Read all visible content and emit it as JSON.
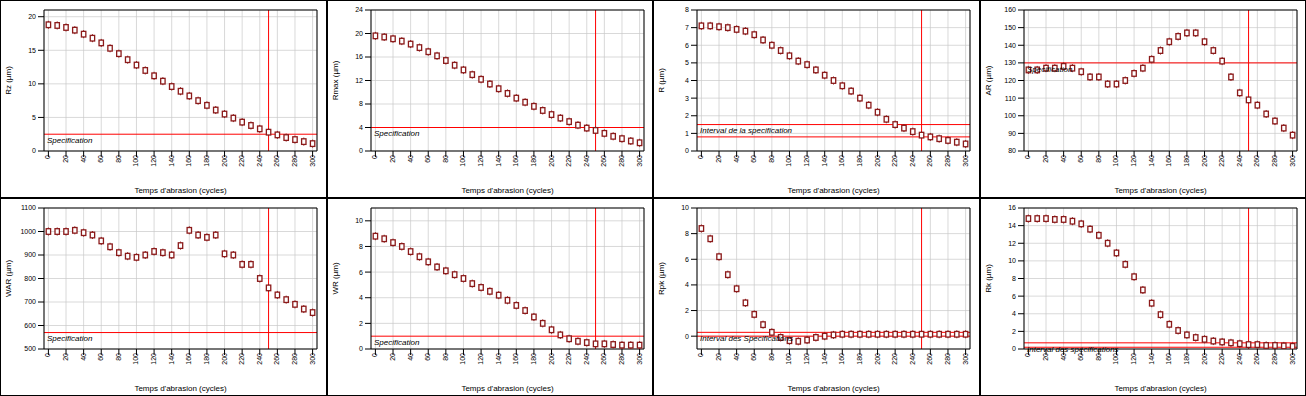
{
  "chart_data": [
    {
      "type": "scatter",
      "marker": "box",
      "color": "#8b1a1a",
      "grid": true,
      "ylabel": "Rz (µm)",
      "xlabel": "Temps d'abrasion (cycles)",
      "annotation": "Specification",
      "x": [
        0,
        10,
        20,
        30,
        40,
        50,
        60,
        70,
        80,
        90,
        100,
        110,
        120,
        130,
        140,
        150,
        160,
        170,
        180,
        190,
        200,
        210,
        220,
        230,
        240,
        250,
        260,
        270,
        280,
        290,
        300
      ],
      "values": [
        18.8,
        18.7,
        18.4,
        18.0,
        17.4,
        16.8,
        16.1,
        15.3,
        14.5,
        13.6,
        12.8,
        12.0,
        11.2,
        10.4,
        9.6,
        8.9,
        8.2,
        7.5,
        6.8,
        6.1,
        5.5,
        4.9,
        4.3,
        3.8,
        3.3,
        2.8,
        2.4,
        2.0,
        1.7,
        1.4,
        1.1
      ],
      "xlim": [
        -5,
        305
      ],
      "xticks": [
        0,
        20,
        40,
        60,
        80,
        100,
        120,
        140,
        160,
        180,
        200,
        220,
        240,
        260,
        280,
        300
      ],
      "ylim": [
        0,
        21
      ],
      "yticks": [
        0,
        5,
        10,
        15,
        20
      ],
      "hlines": [
        2.5
      ],
      "vline": 250
    },
    {
      "type": "scatter",
      "marker": "box",
      "color": "#8b1a1a",
      "grid": true,
      "ylabel": "Rmax (µm)",
      "xlabel": "Temps d'abrasion (cycles)",
      "annotation": "Specification",
      "x": [
        0,
        10,
        20,
        30,
        40,
        50,
        60,
        70,
        80,
        90,
        100,
        110,
        120,
        130,
        140,
        150,
        160,
        170,
        180,
        190,
        200,
        210,
        220,
        230,
        240,
        250,
        260,
        270,
        280,
        290,
        300
      ],
      "values": [
        19.6,
        19.4,
        19.1,
        18.7,
        18.2,
        17.6,
        16.9,
        16.2,
        15.4,
        14.6,
        13.8,
        13.0,
        12.2,
        11.4,
        10.6,
        9.8,
        9.0,
        8.3,
        7.6,
        6.9,
        6.2,
        5.6,
        5.0,
        4.4,
        3.9,
        3.5,
        3.0,
        2.5,
        2.1,
        1.7,
        1.4
      ],
      "xlim": [
        -5,
        305
      ],
      "xticks": [
        0,
        20,
        40,
        60,
        80,
        100,
        120,
        140,
        160,
        180,
        200,
        220,
        240,
        260,
        280,
        300
      ],
      "ylim": [
        0,
        24
      ],
      "yticks": [
        0,
        4,
        8,
        12,
        16,
        20,
        24
      ],
      "hlines": [
        4
      ],
      "vline": 250
    },
    {
      "type": "scatter",
      "marker": "box",
      "color": "#8b1a1a",
      "grid": true,
      "ylabel": "R (µm)",
      "xlabel": "Temps d'abrasion (cycles)",
      "annotation": "Interval de la specification",
      "x": [
        0,
        10,
        20,
        30,
        40,
        50,
        60,
        70,
        80,
        90,
        100,
        110,
        120,
        130,
        140,
        150,
        160,
        170,
        180,
        190,
        200,
        210,
        220,
        230,
        240,
        250,
        260,
        270,
        280,
        290,
        300
      ],
      "values": [
        7.1,
        7.1,
        7.05,
        7.0,
        6.9,
        6.8,
        6.6,
        6.3,
        6.0,
        5.7,
        5.4,
        5.1,
        4.9,
        4.6,
        4.3,
        4.0,
        3.7,
        3.4,
        3.0,
        2.6,
        2.2,
        1.8,
        1.5,
        1.3,
        1.1,
        0.9,
        0.8,
        0.7,
        0.6,
        0.5,
        0.4
      ],
      "xlim": [
        -5,
        305
      ],
      "xticks": [
        0,
        20,
        40,
        60,
        80,
        100,
        120,
        140,
        160,
        180,
        200,
        220,
        240,
        260,
        280,
        300
      ],
      "ylim": [
        0,
        8
      ],
      "yticks": [
        0,
        1,
        2,
        3,
        4,
        5,
        6,
        7,
        8
      ],
      "hlines": [
        0.8,
        1.5
      ],
      "vline": 250
    },
    {
      "type": "scatter",
      "marker": "box",
      "color": "#8b1a1a",
      "grid": true,
      "ylabel": "AR (µm)",
      "xlabel": "Temps d'abrasion (cycles)",
      "annotation": "Specification",
      "x": [
        0,
        10,
        20,
        30,
        40,
        50,
        60,
        70,
        80,
        90,
        100,
        110,
        120,
        130,
        140,
        150,
        160,
        170,
        180,
        190,
        200,
        210,
        220,
        230,
        240,
        250,
        260,
        270,
        280,
        290,
        300
      ],
      "values": [
        126,
        126,
        127,
        127,
        128,
        127,
        125,
        122,
        122,
        118,
        118,
        120,
        124,
        127,
        132,
        137,
        142,
        145,
        147,
        147,
        142,
        137,
        131,
        122,
        113,
        109,
        106,
        101,
        97,
        93,
        89
      ],
      "xlim": [
        -5,
        305
      ],
      "xticks": [
        0,
        20,
        40,
        60,
        80,
        100,
        120,
        140,
        160,
        180,
        200,
        220,
        240,
        260,
        280,
        300
      ],
      "ylim": [
        80,
        160
      ],
      "yticks": [
        80,
        90,
        100,
        110,
        120,
        130,
        140,
        150,
        160
      ],
      "hlines": [
        130
      ],
      "vline": 250
    },
    {
      "type": "scatter",
      "marker": "box",
      "color": "#8b1a1a",
      "grid": true,
      "ylabel": "WAR (µm)",
      "xlabel": "Temps d'abrasion (cycles)",
      "annotation": "Specification",
      "x": [
        0,
        10,
        20,
        30,
        40,
        50,
        60,
        70,
        80,
        90,
        100,
        110,
        120,
        130,
        140,
        150,
        160,
        170,
        180,
        190,
        200,
        210,
        220,
        230,
        240,
        250,
        260,
        270,
        280,
        290,
        300
      ],
      "values": [
        1000,
        1000,
        1000,
        1005,
        995,
        985,
        960,
        935,
        910,
        895,
        890,
        900,
        915,
        910,
        900,
        940,
        1005,
        985,
        975,
        985,
        905,
        900,
        860,
        860,
        800,
        760,
        730,
        710,
        690,
        670,
        655
      ],
      "xlim": [
        -5,
        305
      ],
      "xticks": [
        0,
        20,
        40,
        60,
        80,
        100,
        120,
        140,
        160,
        180,
        200,
        220,
        240,
        260,
        280,
        300
      ],
      "ylim": [
        500,
        1100
      ],
      "yticks": [
        500,
        600,
        700,
        800,
        900,
        1000,
        1100
      ],
      "hlines": [
        570
      ],
      "vline": 250
    },
    {
      "type": "scatter",
      "marker": "box",
      "color": "#8b1a1a",
      "grid": true,
      "ylabel": "WR (µm)",
      "xlabel": "Temps d'abrasion (cycles)",
      "annotation": "Specification",
      "x": [
        0,
        10,
        20,
        30,
        40,
        50,
        60,
        70,
        80,
        90,
        100,
        110,
        120,
        130,
        140,
        150,
        160,
        170,
        180,
        190,
        200,
        210,
        220,
        230,
        240,
        250,
        260,
        270,
        280,
        290,
        300
      ],
      "values": [
        8.8,
        8.6,
        8.3,
        8.0,
        7.6,
        7.2,
        6.8,
        6.4,
        6.1,
        5.8,
        5.5,
        5.1,
        4.8,
        4.5,
        4.2,
        3.8,
        3.4,
        3.0,
        2.5,
        2.0,
        1.5,
        1.1,
        0.8,
        0.6,
        0.5,
        0.4,
        0.4,
        0.35,
        0.3,
        0.3,
        0.3
      ],
      "xlim": [
        -5,
        305
      ],
      "xticks": [
        0,
        20,
        40,
        60,
        80,
        100,
        120,
        140,
        160,
        180,
        200,
        220,
        240,
        260,
        280,
        300
      ],
      "ylim": [
        0,
        11
      ],
      "yticks": [
        0,
        2,
        4,
        6,
        8,
        10
      ],
      "hlines": [
        1
      ],
      "vline": 250
    },
    {
      "type": "scatter",
      "marker": "box",
      "color": "#8b1a1a",
      "grid": true,
      "ylabel": "Rpk (µm)",
      "xlabel": "Temps d'abrasion (cycles)",
      "annotation": "Interval des Specifications",
      "x": [
        0,
        10,
        20,
        30,
        40,
        50,
        60,
        70,
        80,
        90,
        100,
        110,
        120,
        130,
        140,
        150,
        160,
        170,
        180,
        190,
        200,
        210,
        220,
        230,
        240,
        250,
        260,
        270,
        280,
        290,
        300
      ],
      "values": [
        8.4,
        7.6,
        6.2,
        4.8,
        3.7,
        2.6,
        1.7,
        0.9,
        0.3,
        -0.1,
        -0.35,
        -0.4,
        -0.3,
        -0.1,
        0,
        0.1,
        0.15,
        0.15,
        0.15,
        0.15,
        0.15,
        0.15,
        0.15,
        0.15,
        0.15,
        0.15,
        0.15,
        0.15,
        0.15,
        0.15,
        0.15
      ],
      "xlim": [
        -5,
        305
      ],
      "xticks": [
        0,
        20,
        40,
        60,
        80,
        100,
        120,
        140,
        160,
        180,
        200,
        220,
        240,
        260,
        280,
        300
      ],
      "ylim": [
        -1,
        10
      ],
      "yticks": [
        0,
        2,
        4,
        6,
        8,
        10
      ],
      "hlines": [
        0,
        0.3
      ],
      "vline": 250
    },
    {
      "type": "scatter",
      "marker": "box",
      "color": "#8b1a1a",
      "grid": true,
      "ylabel": "Rk (µm)",
      "xlabel": "Temps d'abrasion (cycles)",
      "annotation": "Interval des spécifications",
      "x": [
        0,
        10,
        20,
        30,
        40,
        50,
        60,
        70,
        80,
        90,
        100,
        110,
        120,
        130,
        140,
        150,
        160,
        170,
        180,
        190,
        200,
        210,
        220,
        230,
        240,
        250,
        260,
        270,
        280,
        290,
        300
      ],
      "values": [
        14.8,
        14.8,
        14.8,
        14.7,
        14.7,
        14.5,
        14.2,
        13.6,
        12.9,
        12.0,
        10.9,
        9.6,
        8.2,
        6.7,
        5.2,
        3.9,
        2.8,
        2.1,
        1.6,
        1.3,
        1.1,
        0.9,
        0.8,
        0.7,
        0.6,
        0.5,
        0.5,
        0.4,
        0.4,
        0.35,
        0.3
      ],
      "xlim": [
        -5,
        305
      ],
      "xticks": [
        0,
        20,
        40,
        60,
        80,
        100,
        120,
        140,
        160,
        180,
        200,
        220,
        240,
        260,
        280,
        300
      ],
      "ylim": [
        0,
        16
      ],
      "yticks": [
        0,
        2,
        4,
        6,
        8,
        10,
        12,
        14,
        16
      ],
      "hlines": [
        0.2,
        0.7
      ],
      "vline": 250
    }
  ]
}
